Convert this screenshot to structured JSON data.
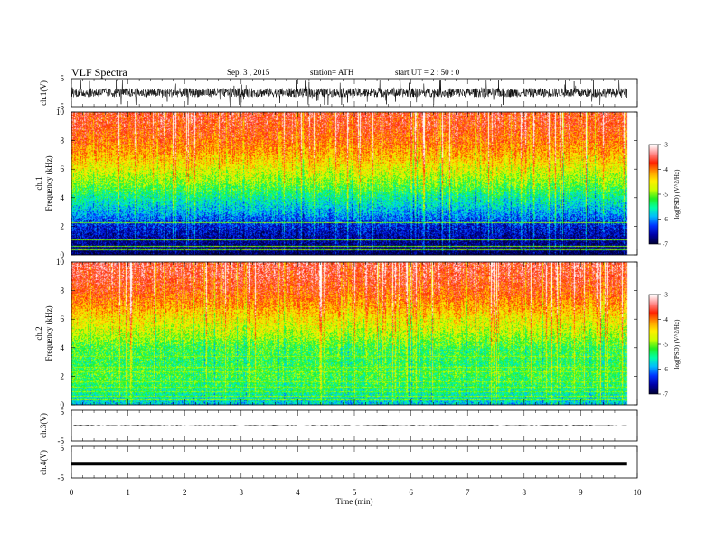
{
  "header": {
    "title": "VLF  Spectra",
    "date": "Sep. 3  , 2015",
    "station": "station= ATH",
    "start": "start  UT  =   2  : 50 : 0"
  },
  "chart_data": [
    {
      "id": "ch1",
      "type": "line",
      "ylabel": "ch.1(V)",
      "yticks": [
        "5",
        "-5"
      ],
      "ylim": [
        -5,
        5
      ],
      "description_level": "noisy waveform around 0 V, bursts up to about +2 / -2.5 V",
      "color": "#000000"
    },
    {
      "id": "spec1",
      "type": "heatmap",
      "ylabel_top": "ch.1",
      "ylabel": "Frequency  (kHz)",
      "yticks": [
        "0",
        "2",
        "4",
        "6",
        "8",
        "10"
      ],
      "ylim": [
        0,
        10
      ],
      "colorbar": {
        "label": "log(PSD) (V^2/Hz)",
        "ticks": [
          "-3",
          "-4",
          "-5",
          "-6",
          "-7"
        ],
        "range": [
          -7,
          -3
        ]
      },
      "profile_kHz": [
        0,
        1,
        2,
        3,
        4,
        5,
        6,
        7,
        8,
        9,
        10
      ],
      "profile_logPSD": [
        -6.9,
        -6.7,
        -6.4,
        -5.9,
        -5.5,
        -5.0,
        -4.6,
        -4.2,
        -3.9,
        -3.7,
        -3.6
      ],
      "horizontal_lines_kHz": [
        0.3,
        0.6,
        1.0,
        2.2
      ]
    },
    {
      "id": "spec2",
      "type": "heatmap",
      "ylabel_top": "ch.2",
      "ylabel": "Frequency  (kHz)",
      "yticks": [
        "0",
        "2",
        "4",
        "6",
        "8",
        "10"
      ],
      "ylim": [
        0,
        10
      ],
      "colorbar": {
        "label": "log(PSD) (V^2/Hz)",
        "ticks": [
          "-3",
          "-4",
          "-5",
          "-6",
          "-7"
        ],
        "range": [
          -7,
          -3
        ]
      },
      "profile_kHz": [
        0,
        1,
        2,
        3,
        4,
        5,
        6,
        7,
        8,
        9,
        10
      ],
      "profile_logPSD": [
        -5.8,
        -5.4,
        -5.2,
        -5.3,
        -5.2,
        -4.8,
        -4.5,
        -4.1,
        -3.8,
        -3.6,
        -3.5
      ],
      "horizontal_lines_kHz": [
        0.3,
        0.6,
        0.9,
        1.2,
        1.6,
        2.3,
        2.6,
        3.4
      ]
    },
    {
      "id": "ch3",
      "type": "line",
      "ylabel": "ch.3(V)",
      "yticks": [
        "5",
        "-5"
      ],
      "ylim": [
        -5,
        5
      ],
      "level": 0,
      "color": "#000000"
    },
    {
      "id": "ch4",
      "type": "line",
      "ylabel": "ch.4(V)",
      "yticks": [
        "5",
        "-5"
      ],
      "ylim": [
        -5,
        5
      ],
      "level": -0.5,
      "color": "#000000"
    }
  ],
  "xaxis": {
    "label": "Time  (min)",
    "ticks": [
      "0",
      "1",
      "2",
      "3",
      "4",
      "5",
      "6",
      "7",
      "8",
      "9",
      "10"
    ],
    "xlim": [
      0,
      10
    ],
    "data_end": 9.82
  },
  "colormap": [
    "#00003a",
    "#0000a8",
    "#0033ff",
    "#00bbff",
    "#00ffaa",
    "#22ee22",
    "#ccff00",
    "#ffee00",
    "#ff9900",
    "#ff2200",
    "#ff8888",
    "#ffffff"
  ]
}
